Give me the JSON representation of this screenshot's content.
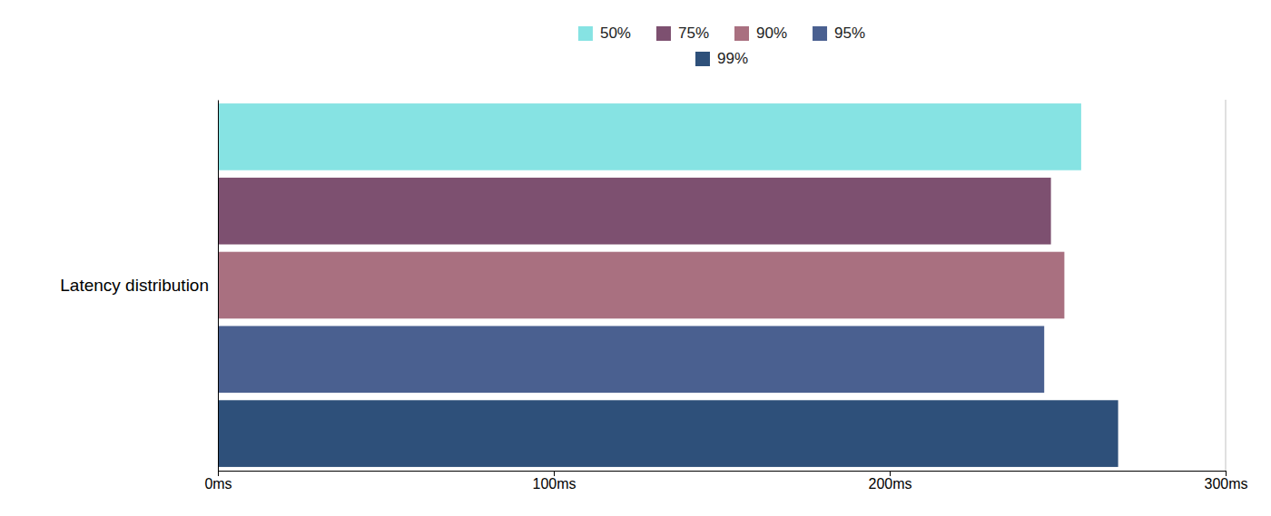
{
  "chart_data": {
    "type": "bar",
    "orientation": "horizontal",
    "categories": [
      "Latency distribution"
    ],
    "series": [
      {
        "name": "50%",
        "color": "#86E3E3",
        "values": [
          257
        ]
      },
      {
        "name": "75%",
        "color": "#7D5070",
        "values": [
          248
        ]
      },
      {
        "name": "90%",
        "color": "#A97080",
        "values": [
          252
        ]
      },
      {
        "name": "95%",
        "color": "#4A6090",
        "values": [
          246
        ]
      },
      {
        "name": "99%",
        "color": "#2E507A",
        "values": [
          268
        ]
      }
    ],
    "xlim": [
      0,
      300
    ],
    "xticks": [
      {
        "value": 0,
        "label": "0ms"
      },
      {
        "value": 100,
        "label": "100ms"
      },
      {
        "value": 200,
        "label": "200ms"
      },
      {
        "value": 300,
        "label": "300ms"
      }
    ],
    "vline": {
      "value": 300,
      "color": "#cccccc"
    },
    "legend": "top",
    "grid": false
  }
}
